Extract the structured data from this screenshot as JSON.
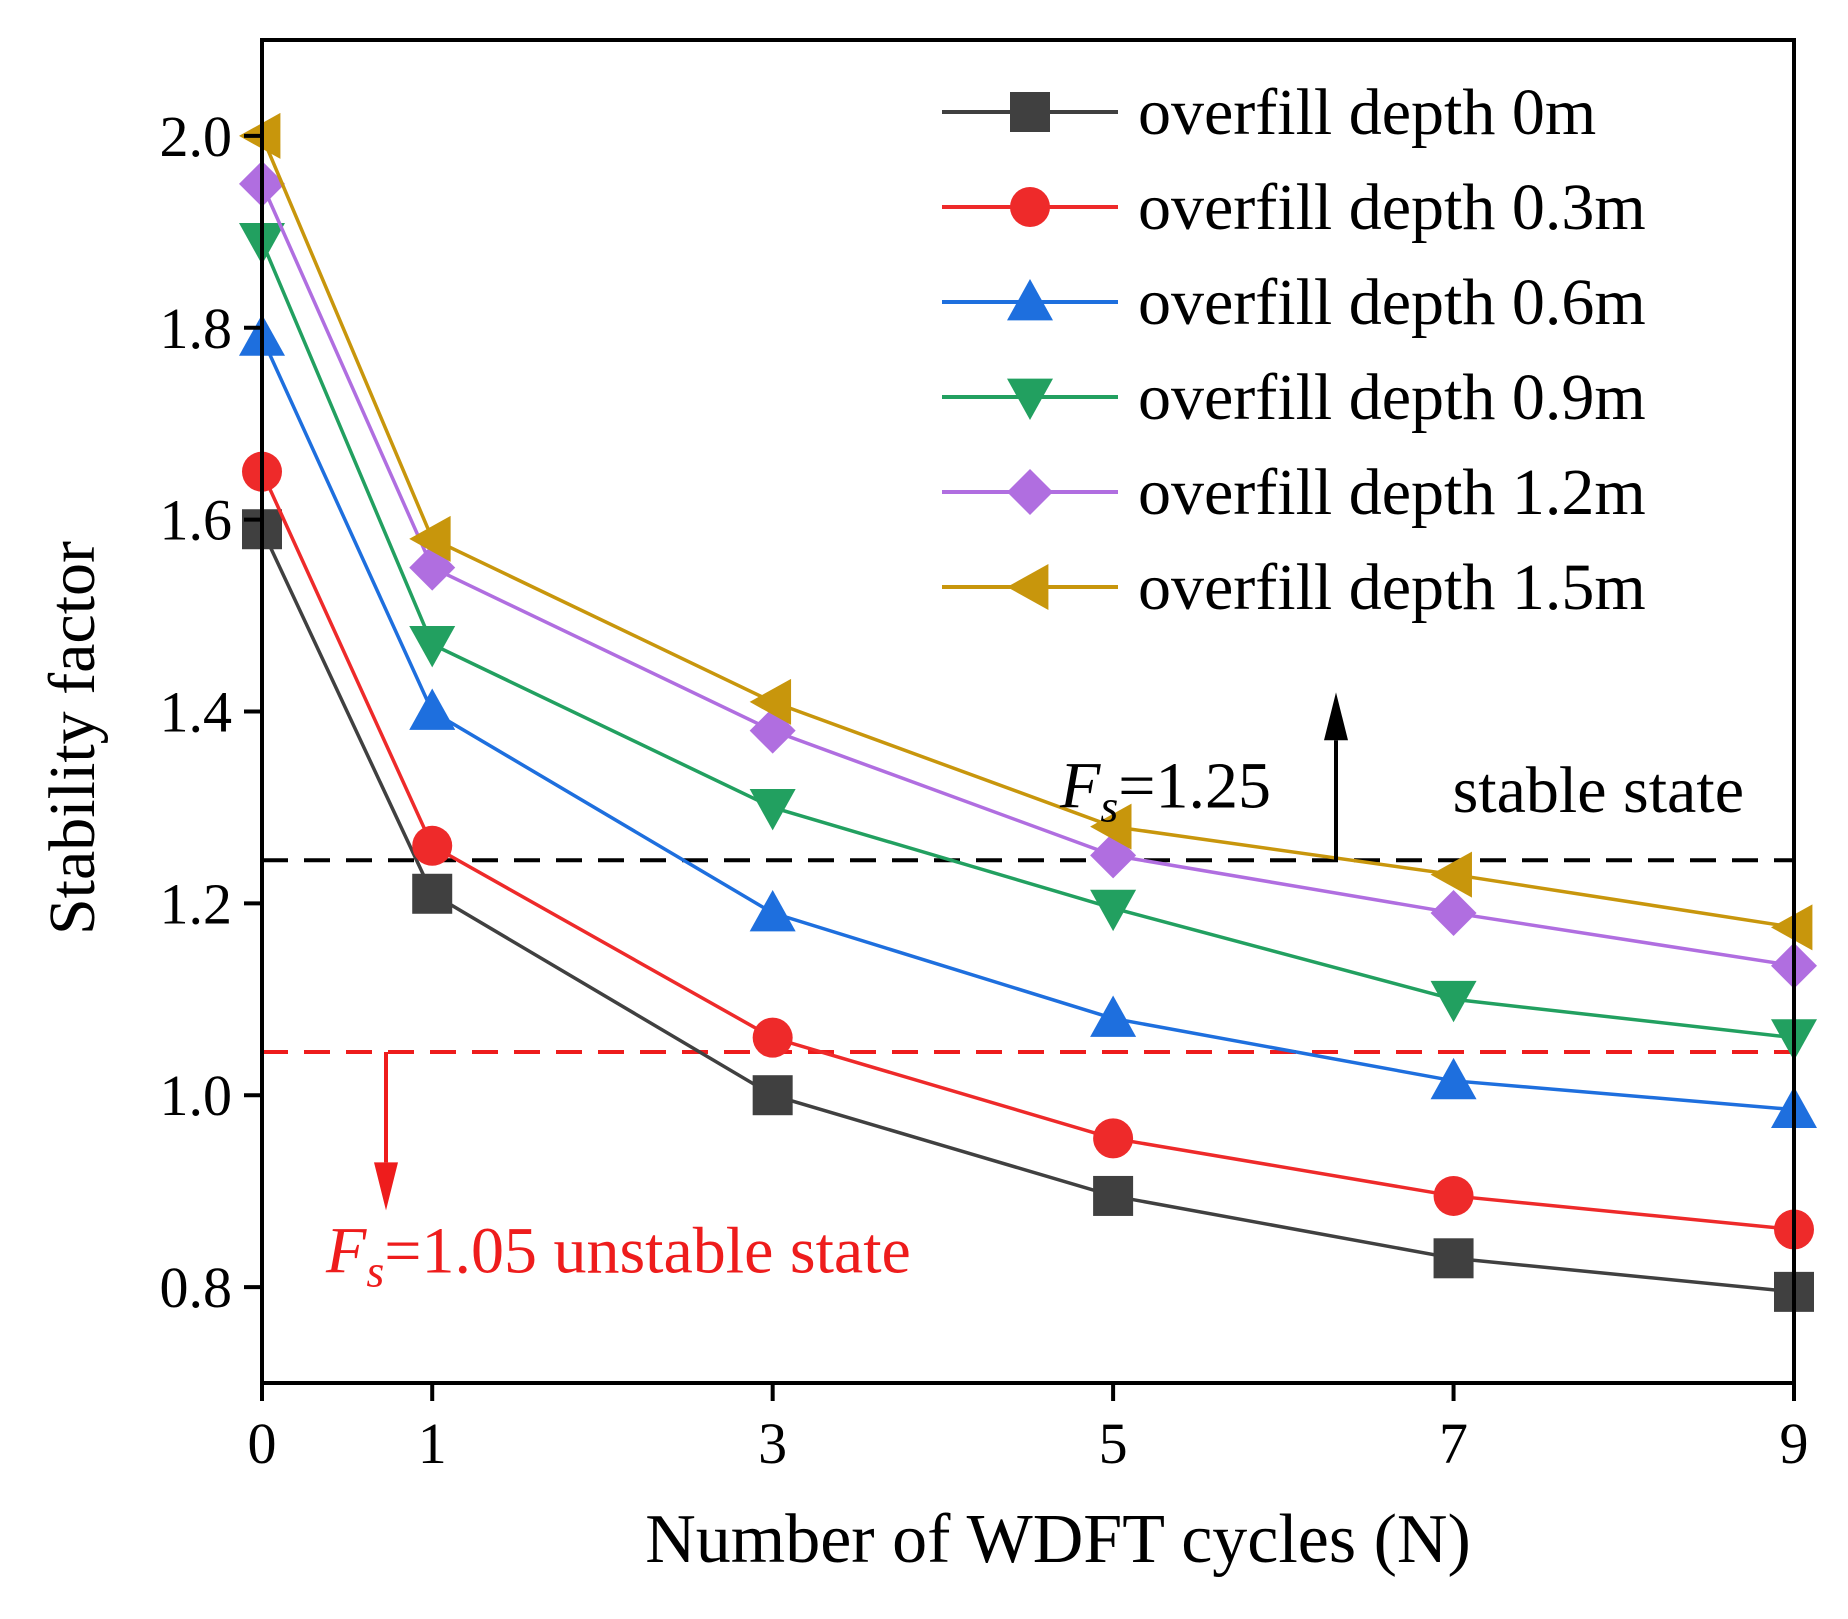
{
  "chart_data": {
    "type": "line",
    "xlabel": "Number of WDFT cycles (N)",
    "ylabel": "Stability factor",
    "x": [
      0,
      1,
      3,
      5,
      7,
      9
    ],
    "xlim": [
      0,
      9
    ],
    "ylim": [
      0.7,
      2.1
    ],
    "xticks": [
      0,
      1,
      3,
      5,
      7,
      9
    ],
    "yticks": [
      0.8,
      1.0,
      1.2,
      1.4,
      1.6,
      1.8,
      2.0
    ],
    "ytick_labels": [
      "0.8",
      "1.0",
      "1.2",
      "1.4",
      "1.6",
      "1.8",
      "2.0"
    ],
    "legend_position": "top-right",
    "series": [
      {
        "name": "overfill depth 0m",
        "color": "#404040",
        "marker": "square",
        "values": [
          1.59,
          1.21,
          1.0,
          0.895,
          0.83,
          0.795
        ]
      },
      {
        "name": "overfill depth 0.3m",
        "color": "#ee2a2a",
        "marker": "circle",
        "values": [
          1.65,
          1.26,
          1.06,
          0.955,
          0.895,
          0.86
        ]
      },
      {
        "name": "overfill depth 0.6m",
        "color": "#1e6fde",
        "marker": "triangle-up",
        "values": [
          1.79,
          1.4,
          1.19,
          1.08,
          1.015,
          0.985
        ]
      },
      {
        "name": "overfill depth 0.9m",
        "color": "#22a060",
        "marker": "triangle-down",
        "values": [
          1.89,
          1.47,
          1.3,
          1.195,
          1.1,
          1.06
        ]
      },
      {
        "name": "overfill depth 1.2m",
        "color": "#b06ee0",
        "marker": "diamond",
        "values": [
          1.95,
          1.55,
          1.38,
          1.25,
          1.19,
          1.135
        ]
      },
      {
        "name": "overfill depth 1.5m",
        "color": "#c8960c",
        "marker": "triangle-left",
        "values": [
          2.0,
          1.58,
          1.41,
          1.28,
          1.23,
          1.175
        ]
      }
    ],
    "reference_lines": [
      {
        "id": "fs125",
        "y": 1.245,
        "color": "#000000",
        "dash": true,
        "label_prefix": "F",
        "label_sub": "s",
        "label_value": "=1.25",
        "state_label": "stable state",
        "arrow_direction": "up"
      },
      {
        "id": "fs105",
        "y": 1.045,
        "color": "#ee1c1c",
        "dash": true,
        "label_prefix": "F",
        "label_sub": "s",
        "label_value": "=1.05 unstable state",
        "arrow_direction": "down"
      }
    ]
  }
}
